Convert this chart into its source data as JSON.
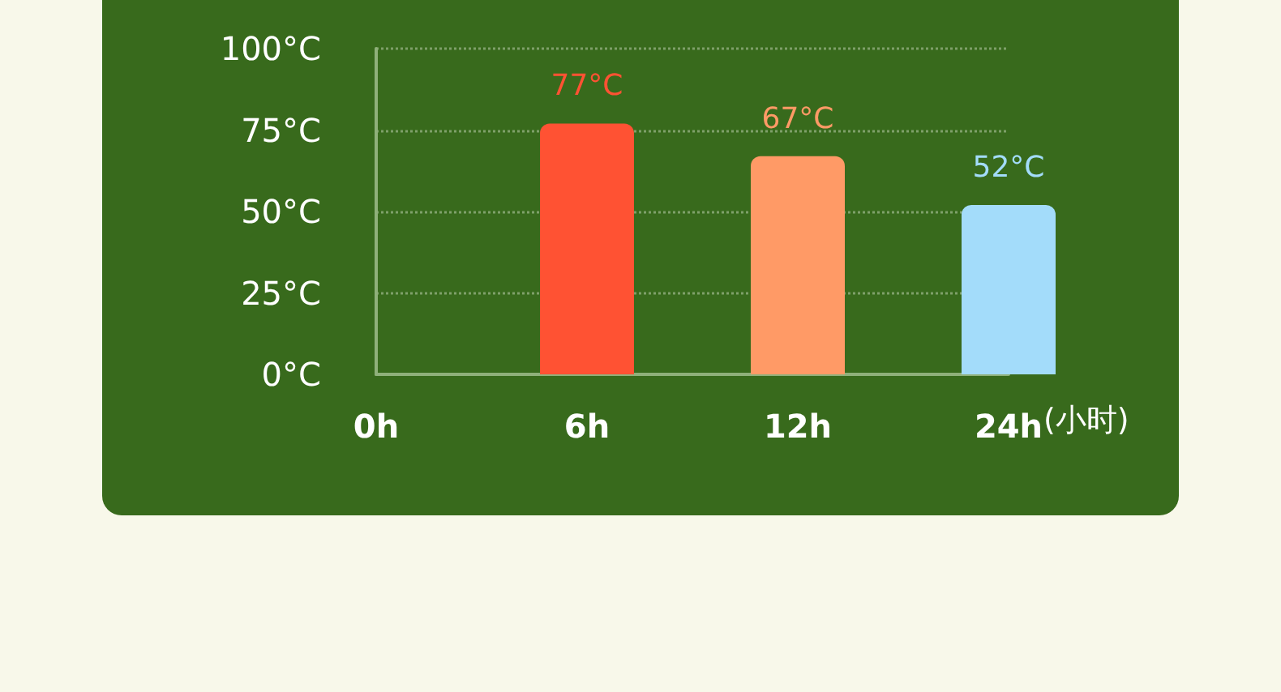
{
  "chart_data": {
    "type": "bar",
    "xlabel": "(小时)",
    "categories": [
      "0h",
      "6h",
      "12h",
      "24h"
    ],
    "values": [
      null,
      77,
      67,
      52
    ],
    "colors": [
      null,
      "#ff5233",
      "#ff9a66",
      "#a3dcfa"
    ],
    "value_labels": [
      null,
      "77°C",
      "67°C",
      "52°C"
    ],
    "ylim": [
      0,
      100
    ],
    "yticks": [
      {
        "value": 0,
        "label": "0°C"
      },
      {
        "value": 25,
        "label": "25°C"
      },
      {
        "value": 50,
        "label": "50°C"
      },
      {
        "value": 75,
        "label": "75°C"
      },
      {
        "value": 100,
        "label": "100°C"
      }
    ],
    "grid": "y",
    "line_style": "dotted"
  }
}
